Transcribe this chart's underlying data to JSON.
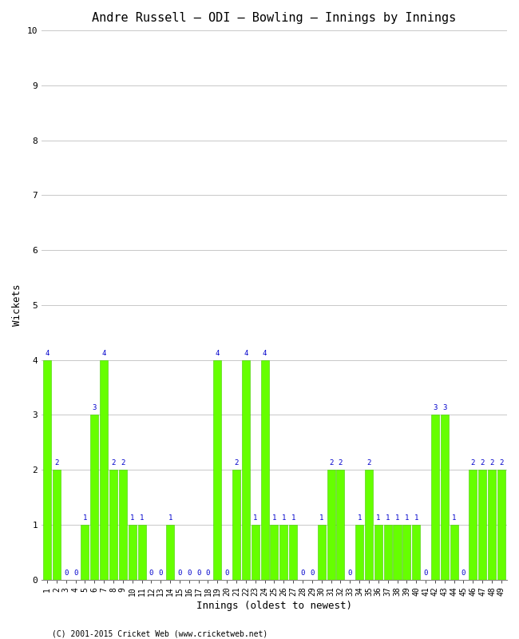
{
  "title": "Andre Russell – ODI – Bowling – Innings by Innings",
  "xlabel": "Innings (oldest to newest)",
  "ylabel": "Wickets",
  "ylim": [
    0,
    10
  ],
  "yticks": [
    0,
    1,
    2,
    3,
    4,
    5,
    6,
    7,
    8,
    9,
    10
  ],
  "bar_color": "#66ff00",
  "bar_edge_color": "#44cc00",
  "label_color": "#0000cc",
  "background_color": "#ffffff",
  "grid_color": "#c8c8c8",
  "footer": "(C) 2001-2015 Cricket Web (www.cricketweb.net)",
  "innings": [
    1,
    2,
    3,
    4,
    5,
    6,
    7,
    8,
    9,
    10,
    11,
    12,
    13,
    14,
    15,
    16,
    17,
    18,
    19,
    20,
    21,
    22,
    23,
    24,
    25,
    26,
    27,
    28,
    29,
    30,
    31,
    32,
    33,
    34,
    35,
    36,
    37,
    38,
    39,
    40,
    41,
    42,
    43,
    44,
    45,
    46,
    47,
    48,
    49
  ],
  "wickets": [
    4,
    2,
    0,
    0,
    1,
    3,
    4,
    2,
    2,
    1,
    1,
    0,
    0,
    1,
    0,
    0,
    0,
    0,
    4,
    0,
    2,
    4,
    1,
    4,
    1,
    1,
    1,
    0,
    0,
    1,
    2,
    2,
    0,
    1,
    2,
    1,
    1,
    1,
    1,
    1,
    0,
    3,
    3,
    1,
    0,
    2,
    2,
    2,
    2
  ],
  "title_fontsize": 11,
  "axis_fontsize": 9,
  "tick_fontsize": 7,
  "label_fontsize": 6.5,
  "fig_width": 6.5,
  "fig_height": 8.0,
  "dpi": 100
}
